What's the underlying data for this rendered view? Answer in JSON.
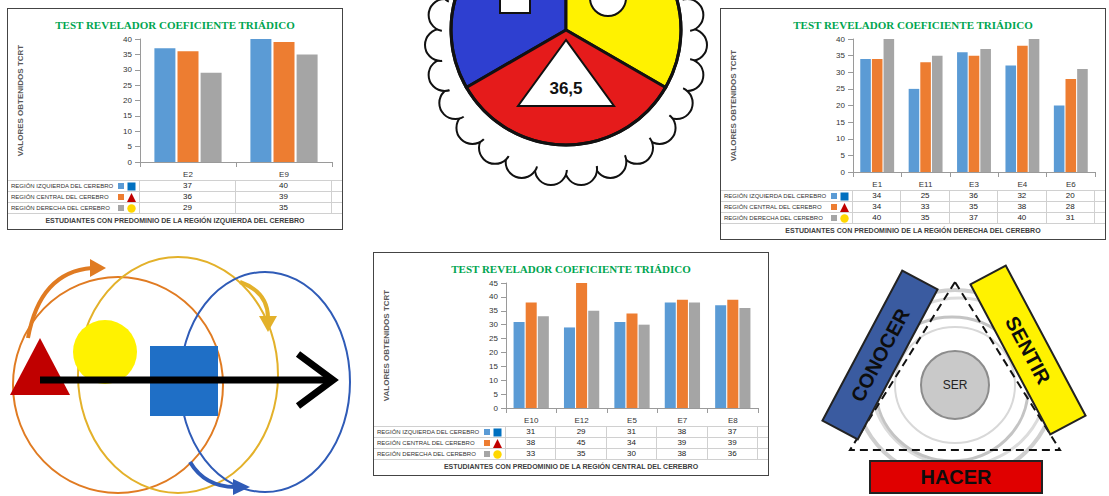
{
  "chart_data": [
    {
      "type": "bar",
      "title": "TEST REVELADOR COEFICIENTE TRIÁDICO",
      "y_label": "VALORES OBTENIDOS TCRT",
      "x_label": "ESTUDIANTES CON PREDOMINIO DE LA REGIÓN IZQUIERDA DEL CEREBRO",
      "categories": [
        "E2",
        "E9"
      ],
      "series": [
        {
          "name": "REGIÓN IZQUIERDA DEL CEREBRO",
          "color": "#5B9BD5",
          "marker": "square",
          "values": [
            37,
            40
          ]
        },
        {
          "name": "REGIÓN CENTRAL DEL CEREBRO",
          "color": "#ED7D31",
          "marker": "triangle",
          "values": [
            36,
            39
          ]
        },
        {
          "name": "REGIÓN DERECHA DEL CEREBRO",
          "color": "#A5A5A5",
          "marker": "circle",
          "values": [
            29,
            35
          ]
        }
      ],
      "ylim": [
        0,
        40
      ],
      "yticks": [
        0,
        5,
        10,
        15,
        20,
        25,
        30,
        35,
        40
      ],
      "grid": false
    },
    {
      "type": "bar",
      "title": "TEST REVELADOR COEFICIENTE TRIÁDICO",
      "y_label": "VALORES OBTENIDOS TCRT",
      "x_label": "ESTUDIANTES CON PREDOMINIO DE LA REGIÓN DERECHA DEL CEREBRO",
      "categories": [
        "E1",
        "E11",
        "E3",
        "E4",
        "E6"
      ],
      "series": [
        {
          "name": "REGIÓN IZQUIERDA DEL CEREBRO",
          "color": "#5B9BD5",
          "marker": "square",
          "values": [
            34,
            25,
            36,
            32,
            20
          ]
        },
        {
          "name": "REGIÓN CENTRAL DEL CEREBRO",
          "color": "#ED7D31",
          "marker": "triangle",
          "values": [
            34,
            33,
            35,
            38,
            28
          ]
        },
        {
          "name": "REGIÓN DERECHA DEL CEREBRO",
          "color": "#A5A5A5",
          "marker": "circle",
          "values": [
            40,
            35,
            37,
            40,
            31
          ]
        }
      ],
      "ylim": [
        0,
        40
      ],
      "yticks": [
        0,
        5,
        10,
        15,
        20,
        25,
        30,
        35,
        40
      ],
      "grid": false
    },
    {
      "type": "bar",
      "title": "TEST REVELADOR COEFICIENTE TRIÁDICO",
      "y_label": "VALORES OBTENIDOS TCRT",
      "x_label": "ESTUDIANTES CON PREDOMINIO DE LA REGIÓN CENTRAL DEL CEREBRO",
      "categories": [
        "E10",
        "E12",
        "E5",
        "E7",
        "E8"
      ],
      "series": [
        {
          "name": "REGIÓN IZQUIERDA DEL CEREBRO",
          "color": "#5B9BD5",
          "marker": "square",
          "values": [
            31,
            29,
            31,
            38,
            37
          ]
        },
        {
          "name": "REGIÓN CENTRAL DEL CEREBRO",
          "color": "#ED7D31",
          "marker": "triangle",
          "values": [
            38,
            45,
            34,
            39,
            39
          ]
        },
        {
          "name": "REGIÓN DERECHA DEL CEREBRO",
          "color": "#A5A5A5",
          "marker": "circle",
          "values": [
            33,
            35,
            30,
            38,
            36
          ]
        }
      ],
      "ylim": [
        0,
        45
      ],
      "yticks": [
        0,
        5,
        10,
        15,
        20,
        25,
        30,
        35,
        40,
        45
      ],
      "grid": false
    }
  ],
  "diagrams": {
    "brain_model": {
      "triangle_label": "36,5"
    },
    "triad": {
      "center": "SER",
      "left": "CONOCER",
      "right": "SENTIR",
      "bottom": "HACER"
    }
  }
}
